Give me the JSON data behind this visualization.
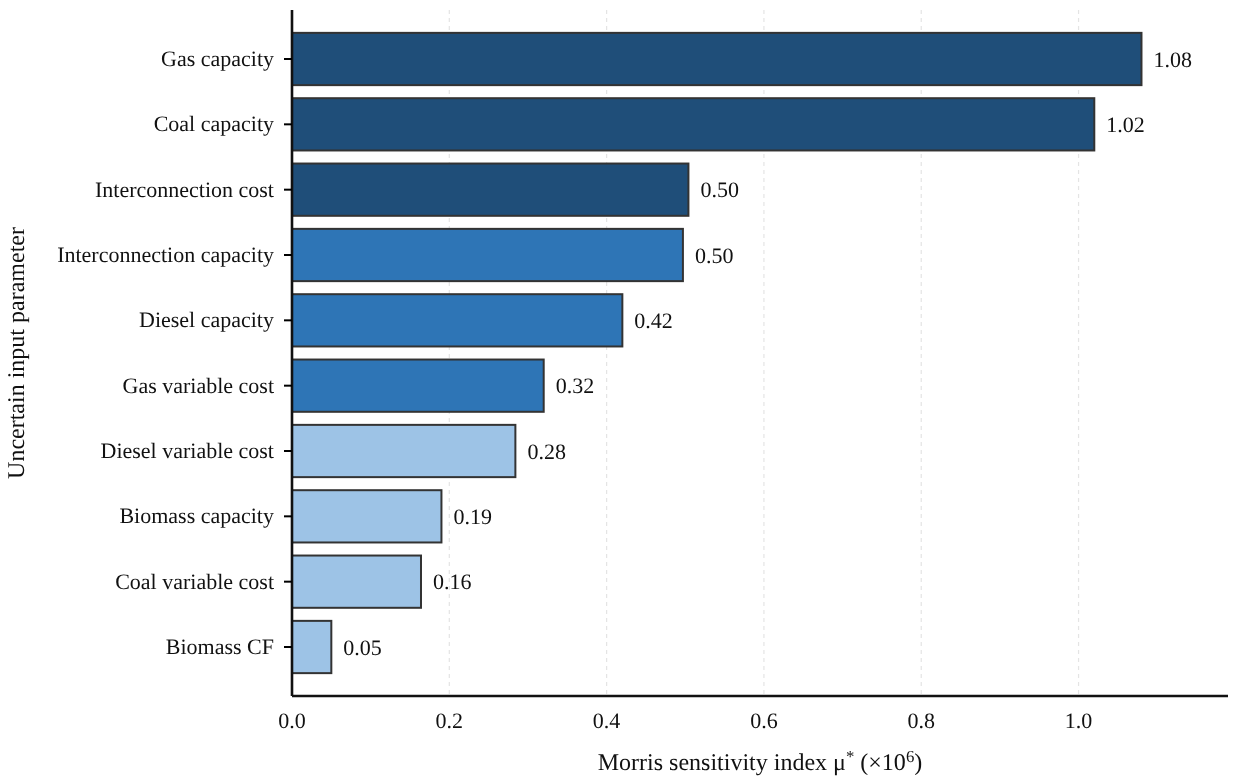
{
  "chart_data": {
    "type": "bar",
    "orientation": "horizontal",
    "xlabel": "Morris sensitivity index μ$^{*}$ (×10$^{6}$)",
    "ylabel": "Uncertain input parameter",
    "categories": [
      "Gas capacity",
      "Coal capacity",
      "Interconnection cost",
      "Interconnection capacity",
      "Diesel capacity",
      "Gas variable cost",
      "Diesel variable cost",
      "Biomass capacity",
      "Coal variable cost",
      "Biomass CF"
    ],
    "values": [
      1.08,
      1.02,
      0.504,
      0.497,
      0.42,
      0.32,
      0.284,
      0.19,
      0.164,
      0.05
    ],
    "value_labels": [
      "1.08",
      "1.02",
      "0.50",
      "0.50",
      "0.42",
      "0.32",
      "0.28",
      "0.19",
      "0.16",
      "0.05"
    ],
    "colors": [
      "#1f4e79",
      "#1f4e79",
      "#1f4e79",
      "#2e75b6",
      "#2e75b6",
      "#2e75b6",
      "#9dc3e6",
      "#9dc3e6",
      "#9dc3e6",
      "#9dc3e6"
    ],
    "xlim": [
      0,
      1.19
    ],
    "xticks": [
      {
        "value": 0,
        "label": "0.0"
      },
      {
        "value": 0.2,
        "label": "0.2"
      },
      {
        "value": 0.4,
        "label": "0.4"
      },
      {
        "value": 0.6,
        "label": "0.6"
      },
      {
        "value": 0.8,
        "label": "0.8"
      },
      {
        "value": 1,
        "label": "1.0"
      }
    ],
    "grid": "x"
  }
}
